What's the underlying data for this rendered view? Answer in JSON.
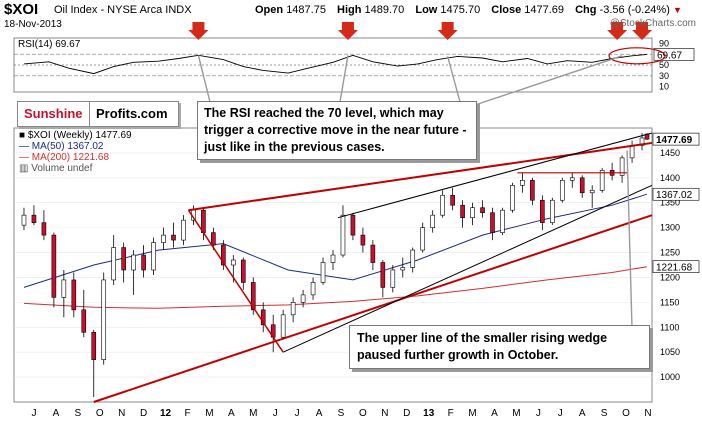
{
  "header": {
    "symbol": "$XOI",
    "name": "Oil Index - NYSE Arca INDX",
    "date": "18-Nov-2013",
    "open_label": "Open",
    "open": "1487.75",
    "high_label": "High",
    "high": "1489.70",
    "low_label": "Low",
    "low": "1475.70",
    "close_label": "Close",
    "close": "1477.69",
    "chg_label": "Chg",
    "chg": "-3.56 (-0.24%)",
    "chg_arrow": "▼"
  },
  "copyright": "@StockCharts.com",
  "logo": {
    "part1": "Sunshine",
    "part2": "Profits.com"
  },
  "notes": {
    "rsi": "The RSI reached the 70 level, which may trigger a corrective move in the near future - just like in the previous cases.",
    "wedge": "The upper line of the smaller rising wedge paused further growth in October."
  },
  "legend": {
    "price": "■ $XOI (Weekly) 1477.69",
    "ma50": "— MA(50) 1367.02",
    "ma200": "— MA(200) 1221.68",
    "volume": "▥ Volume undef"
  },
  "colors": {
    "up": "#ffffff",
    "down": "#c8102e",
    "wick": "#000000",
    "ma50": "#1a2a8a",
    "ma200": "#d03030",
    "trend_red": "#c00000",
    "trend_black": "#000000",
    "arrow": "#d42a1a"
  },
  "chart_data": [
    {
      "type": "line",
      "title": "RSI(14) 69.67",
      "ylim": [
        0,
        100
      ],
      "y_ticks": [
        10,
        30,
        50,
        70,
        90
      ],
      "reference_lines": [
        30,
        50,
        70
      ],
      "last_value": "69.67",
      "x": [
        "2011-06-24",
        "2011-07-29",
        "2011-08-26",
        "2011-09-30",
        "2011-10-28",
        "2011-11-25",
        "2011-12-30",
        "2012-01-27",
        "2012-02-24",
        "2012-03-30",
        "2012-04-27",
        "2012-05-25",
        "2012-06-29",
        "2012-07-27",
        "2012-08-31",
        "2012-09-28",
        "2012-10-26",
        "2012-11-30",
        "2012-12-28",
        "2013-01-25",
        "2013-02-22",
        "2013-03-29",
        "2013-04-26",
        "2013-05-31",
        "2013-06-28",
        "2013-07-26",
        "2013-08-30",
        "2013-09-27",
        "2013-10-25",
        "2013-11-15"
      ],
      "values": [
        52,
        56,
        44,
        34,
        47,
        55,
        57,
        62,
        68,
        60,
        47,
        40,
        35,
        44,
        55,
        68,
        56,
        48,
        52,
        60,
        66,
        63,
        56,
        62,
        52,
        58,
        55,
        62,
        67,
        69.67
      ]
    },
    {
      "type": "candlestick",
      "title": "$XOI (Weekly) 1477.69",
      "series_ma": [
        {
          "name": "MA(50) 1367.02",
          "x": [
            "2011-06-24",
            "2011-09-30",
            "2011-12-30",
            "2012-03-30",
            "2012-06-29",
            "2012-09-28",
            "2012-12-28",
            "2013-03-29",
            "2013-06-28",
            "2013-09-27",
            "2013-11-15"
          ],
          "values": [
            1180,
            1225,
            1255,
            1268,
            1215,
            1195,
            1235,
            1285,
            1318,
            1345,
            1367.02
          ]
        },
        {
          "name": "MA(200) 1221.68",
          "x": [
            "2011-06-24",
            "2011-09-30",
            "2011-12-30",
            "2012-03-30",
            "2012-06-29",
            "2012-09-28",
            "2012-12-28",
            "2013-03-29",
            "2013-06-28",
            "2013-09-27",
            "2013-11-15"
          ],
          "values": [
            1148,
            1140,
            1138,
            1142,
            1145,
            1152,
            1163,
            1178,
            1195,
            1210,
            1221.68
          ]
        }
      ],
      "ohlc": [
        [
          "2011-06-24",
          1305,
          1340,
          1295,
          1325
        ],
        [
          "2011-07-08",
          1325,
          1345,
          1305,
          1310
        ],
        [
          "2011-07-22",
          1310,
          1335,
          1275,
          1285
        ],
        [
          "2011-08-05",
          1285,
          1290,
          1140,
          1160
        ],
        [
          "2011-08-19",
          1160,
          1215,
          1120,
          1195
        ],
        [
          "2011-09-02",
          1195,
          1210,
          1120,
          1135
        ],
        [
          "2011-09-16",
          1135,
          1175,
          1080,
          1090
        ],
        [
          "2011-09-30",
          1090,
          1095,
          960,
          1035
        ],
        [
          "2011-10-14",
          1035,
          1210,
          1025,
          1195
        ],
        [
          "2011-10-28",
          1195,
          1285,
          1185,
          1260
        ],
        [
          "2011-11-11",
          1260,
          1270,
          1190,
          1215
        ],
        [
          "2011-11-25",
          1215,
          1255,
          1165,
          1245
        ],
        [
          "2011-12-09",
          1245,
          1265,
          1200,
          1215
        ],
        [
          "2011-12-23",
          1215,
          1280,
          1205,
          1270
        ],
        [
          "2012-01-06",
          1270,
          1300,
          1255,
          1285
        ],
        [
          "2012-01-20",
          1285,
          1310,
          1260,
          1275
        ],
        [
          "2012-02-03",
          1275,
          1325,
          1265,
          1315
        ],
        [
          "2012-02-17",
          1315,
          1345,
          1305,
          1335
        ],
        [
          "2012-03-02",
          1335,
          1340,
          1275,
          1290
        ],
        [
          "2012-03-16",
          1290,
          1300,
          1255,
          1265
        ],
        [
          "2012-03-30",
          1265,
          1275,
          1215,
          1225
        ],
        [
          "2012-04-13",
          1225,
          1245,
          1190,
          1235
        ],
        [
          "2012-04-27",
          1235,
          1240,
          1175,
          1190
        ],
        [
          "2012-05-11",
          1190,
          1200,
          1125,
          1135
        ],
        [
          "2012-05-25",
          1135,
          1150,
          1090,
          1105
        ],
        [
          "2012-06-08",
          1105,
          1125,
          1050,
          1080
        ],
        [
          "2012-06-22",
          1080,
          1135,
          1075,
          1125
        ],
        [
          "2012-07-06",
          1125,
          1160,
          1110,
          1150
        ],
        [
          "2012-07-20",
          1150,
          1175,
          1140,
          1165
        ],
        [
          "2012-08-03",
          1165,
          1200,
          1155,
          1190
        ],
        [
          "2012-08-17",
          1190,
          1240,
          1185,
          1230
        ],
        [
          "2012-08-31",
          1230,
          1255,
          1215,
          1245
        ],
        [
          "2012-09-14",
          1245,
          1345,
          1240,
          1325
        ],
        [
          "2012-09-28",
          1325,
          1330,
          1275,
          1285
        ],
        [
          "2012-10-12",
          1285,
          1300,
          1250,
          1265
        ],
        [
          "2012-10-26",
          1265,
          1275,
          1215,
          1230
        ],
        [
          "2012-11-09",
          1230,
          1235,
          1160,
          1180
        ],
        [
          "2012-11-23",
          1180,
          1225,
          1170,
          1215
        ],
        [
          "2012-12-07",
          1215,
          1240,
          1200,
          1220
        ],
        [
          "2012-12-21",
          1220,
          1260,
          1210,
          1255
        ],
        [
          "2013-01-04",
          1255,
          1310,
          1250,
          1300
        ],
        [
          "2013-01-18",
          1300,
          1335,
          1290,
          1325
        ],
        [
          "2013-02-01",
          1325,
          1375,
          1320,
          1365
        ],
        [
          "2013-02-15",
          1365,
          1380,
          1335,
          1345
        ],
        [
          "2013-03-01",
          1345,
          1355,
          1300,
          1320
        ],
        [
          "2013-03-15",
          1320,
          1350,
          1305,
          1340
        ],
        [
          "2013-03-29",
          1340,
          1355,
          1320,
          1330
        ],
        [
          "2013-04-12",
          1330,
          1340,
          1275,
          1290
        ],
        [
          "2013-04-26",
          1290,
          1340,
          1285,
          1335
        ],
        [
          "2013-05-10",
          1335,
          1390,
          1330,
          1385
        ],
        [
          "2013-05-24",
          1385,
          1410,
          1370,
          1395
        ],
        [
          "2013-06-07",
          1395,
          1400,
          1345,
          1355
        ],
        [
          "2013-06-21",
          1355,
          1365,
          1295,
          1310
        ],
        [
          "2013-07-05",
          1310,
          1360,
          1305,
          1355
        ],
        [
          "2013-07-19",
          1355,
          1400,
          1350,
          1395
        ],
        [
          "2013-08-02",
          1395,
          1410,
          1380,
          1400
        ],
        [
          "2013-08-16",
          1400,
          1405,
          1360,
          1370
        ],
        [
          "2013-08-30",
          1370,
          1385,
          1340,
          1375
        ],
        [
          "2013-09-13",
          1375,
          1420,
          1370,
          1415
        ],
        [
          "2013-09-27",
          1415,
          1430,
          1395,
          1405
        ],
        [
          "2013-10-11",
          1405,
          1445,
          1390,
          1440
        ],
        [
          "2013-10-25",
          1440,
          1475,
          1430,
          1465
        ],
        [
          "2013-11-08",
          1465,
          1490,
          1455,
          1480
        ],
        [
          "2013-11-15",
          1487.75,
          1489.7,
          1475.7,
          1477.69
        ]
      ],
      "ylim": [
        950,
        1500
      ],
      "y_ticks": [
        1000,
        1050,
        1100,
        1150,
        1200,
        1250,
        1300,
        1350,
        1400,
        1450
      ],
      "last_labels": [
        "1477.69",
        "1367.02",
        "1221.68"
      ],
      "x_labels": [
        "J",
        "A",
        "S",
        "O",
        "N",
        "D",
        "12",
        "F",
        "M",
        "A",
        "M",
        "J",
        "J",
        "A",
        "S",
        "O",
        "N",
        "D",
        "13",
        "F",
        "M",
        "A",
        "M",
        "J",
        "J",
        "A",
        "S",
        "O",
        "N"
      ]
    }
  ]
}
